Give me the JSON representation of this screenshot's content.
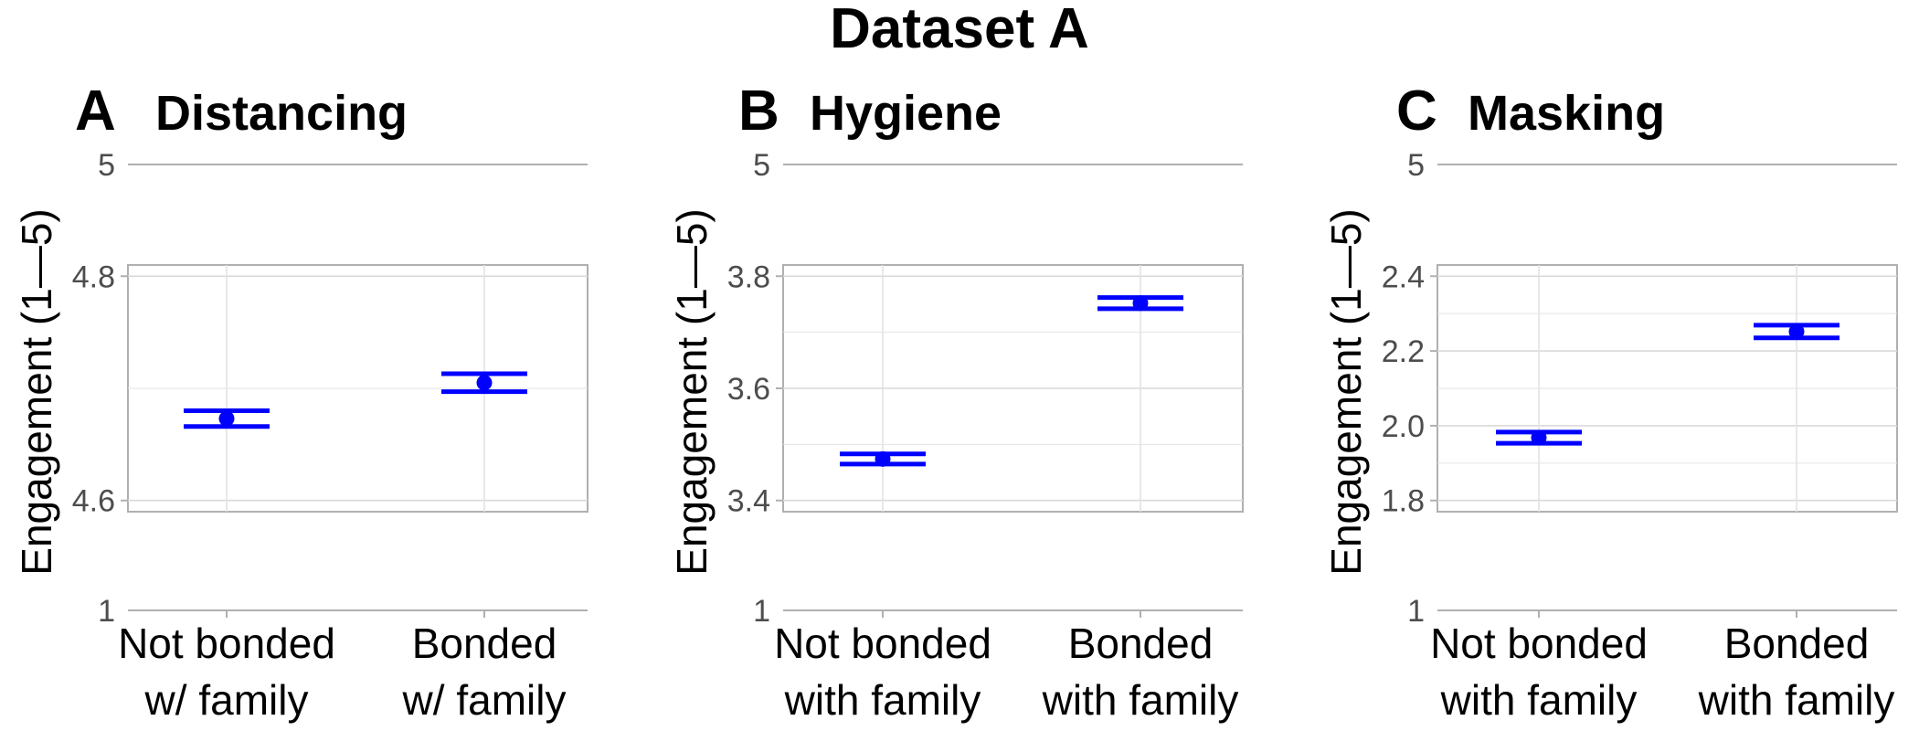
{
  "figure": {
    "title": "Dataset A"
  },
  "colors": {
    "accent": "#0000ff",
    "grid": "#e3e3e3",
    "axis": "#b0b0b0",
    "text": "#000000",
    "tick_text": "#4d4d4d"
  },
  "chart_data": [
    {
      "panel": "A",
      "type": "scatter",
      "title": "Distancing",
      "ylabel": "Engagement (1—5)",
      "categories": [
        [
          "Not bonded",
          "w/ family"
        ],
        [
          "Bonded",
          "w/ family"
        ]
      ],
      "values": [
        4.673,
        4.705
      ],
      "error_bars": [
        [
          4.666,
          4.68
        ],
        [
          4.697,
          4.713
        ]
      ],
      "ylim": [
        4.59,
        4.81
      ],
      "yticks": [
        4.6,
        4.8
      ],
      "ytick_labels": [
        "4.6",
        "4.8"
      ],
      "axis_extremes": {
        "top": "5",
        "bottom": "1"
      },
      "grid": true
    },
    {
      "panel": "B",
      "type": "scatter",
      "title": "Hygiene",
      "ylabel": "Engagement (1—5)",
      "categories": [
        [
          "Not bonded",
          "with family"
        ],
        [
          "Bonded",
          "with family"
        ]
      ],
      "values": [
        3.474,
        3.752
      ],
      "error_bars": [
        [
          3.465,
          3.483
        ],
        [
          3.742,
          3.762
        ]
      ],
      "ylim": [
        3.38,
        3.82
      ],
      "yticks": [
        3.4,
        3.6,
        3.8
      ],
      "ytick_labels": [
        "3.4",
        "3.6",
        "3.8"
      ],
      "axis_extremes": {
        "top": "5",
        "bottom": "1"
      },
      "grid": true
    },
    {
      "panel": "C",
      "type": "scatter",
      "title": "Masking",
      "ylabel": "Engagement (1—5)",
      "categories": [
        [
          "Not bonded",
          "with family"
        ],
        [
          "Bonded",
          "with family"
        ]
      ],
      "values": [
        1.968,
        2.252
      ],
      "error_bars": [
        [
          1.953,
          1.983
        ],
        [
          2.235,
          2.269
        ]
      ],
      "ylim": [
        1.77,
        2.43
      ],
      "yticks": [
        1.8,
        2.0,
        2.2,
        2.4
      ],
      "ytick_labels": [
        "1.8",
        "2.0",
        "2.2",
        "2.4"
      ],
      "axis_extremes": {
        "top": "5",
        "bottom": "1"
      },
      "grid": true
    }
  ]
}
